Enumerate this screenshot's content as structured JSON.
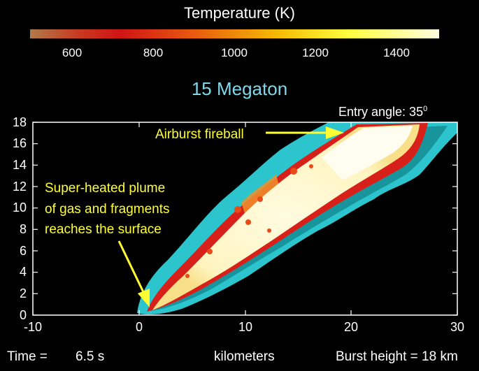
{
  "colorbar": {
    "title": "Temperature (K)",
    "ticks": [
      "600",
      "800",
      "1000",
      "1200",
      "1400"
    ]
  },
  "scenario_title": "15 Megaton",
  "entry_angle": {
    "text": "Entry angle: 35",
    "superscript": "0"
  },
  "annotations": {
    "fireball": "Airburst fireball",
    "plume_lines": [
      "Super-heated plume",
      "of gas and fragments",
      "reaches the surface"
    ]
  },
  "axes": {
    "x_ticks": [
      "-10",
      "0",
      "10",
      "20",
      "30"
    ],
    "y_ticks": [
      "0",
      "2",
      "4",
      "6",
      "8",
      "10",
      "12",
      "14",
      "16",
      "18"
    ]
  },
  "footer": {
    "time_label": "Time =",
    "time_value": "6.5 s",
    "x_unit": "kilometers",
    "burst_height": "Burst height = 18 km"
  },
  "colors": {
    "background": "#000000",
    "annotation": "#ffff33",
    "title_cyan": "#7fd8ea",
    "shock_cyan": "#2fd0d8",
    "hot_core": "#fff8c8",
    "red_edge": "#d8201a"
  }
}
